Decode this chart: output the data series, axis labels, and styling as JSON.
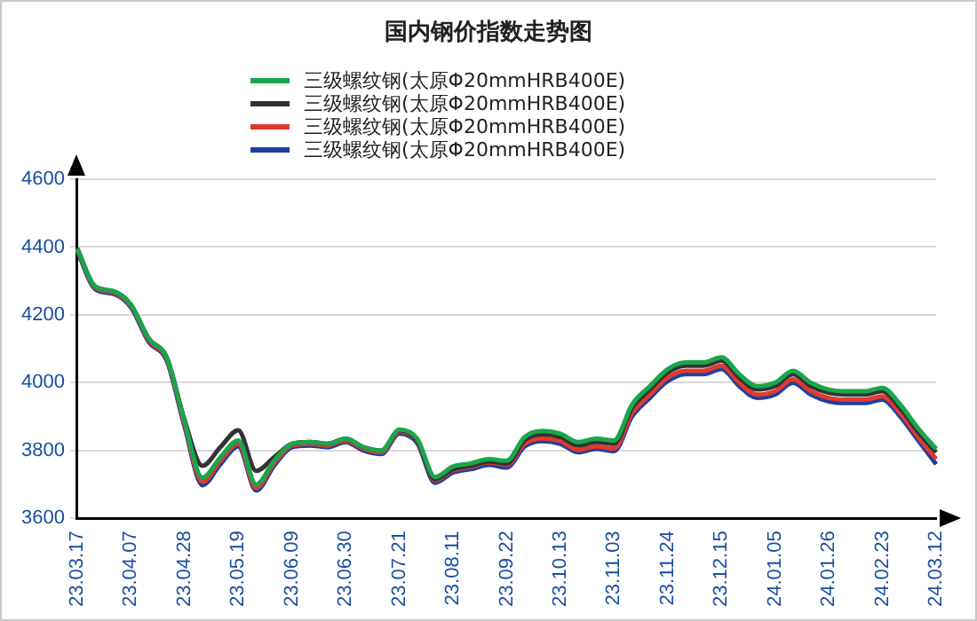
{
  "chart_data": {
    "type": "line",
    "title": "国内钢价指数走势图",
    "categories": [
      "23.03.17",
      null,
      null,
      "23.04.07",
      null,
      null,
      "23.04.28",
      null,
      null,
      "23.05.19",
      null,
      null,
      "23.06.09",
      null,
      null,
      "23.06.30",
      null,
      null,
      "23.07.21",
      null,
      null,
      "23.08.11",
      null,
      null,
      "23.09.22",
      null,
      null,
      "23.10.13",
      null,
      null,
      "23.11.03",
      null,
      null,
      "23.11.24",
      null,
      null,
      "23.12.15",
      null,
      null,
      "24.01.05",
      null,
      null,
      "24.01.26",
      null,
      null,
      "24.02.23",
      null,
      null,
      "24.03.12"
    ],
    "series": [
      {
        "name": "三级螺纹钢(太原Φ20mmHRB400E)",
        "color": "#1aa64b",
        "values": [
          4396,
          4284,
          4270,
          4230,
          4130,
          4075,
          3885,
          3720,
          3780,
          3830,
          3700,
          3770,
          3820,
          3825,
          3820,
          3835,
          3810,
          3800,
          3862,
          3835,
          3722,
          3753,
          3762,
          3775,
          3770,
          3840,
          3858,
          3850,
          3825,
          3835,
          3830,
          3935,
          3990,
          4040,
          4060,
          4060,
          4075,
          4025,
          3990,
          4000,
          4035,
          4000,
          3980,
          3975,
          3975,
          3985,
          3935,
          3865,
          3805
        ]
      },
      {
        "name": "三级螺纹钢(太原Φ20mmHRB400E)",
        "color": "#333333",
        "values": [
          4396,
          4284,
          4270,
          4230,
          4130,
          4075,
          3890,
          3755,
          3810,
          3860,
          3740,
          3780,
          3820,
          3825,
          3820,
          3835,
          3810,
          3800,
          3860,
          3830,
          3715,
          3745,
          3755,
          3768,
          3762,
          3830,
          3848,
          3840,
          3815,
          3825,
          3820,
          3925,
          3980,
          4030,
          4050,
          4050,
          4065,
          4015,
          3980,
          3990,
          4025,
          3990,
          3970,
          3965,
          3965,
          3975,
          3925,
          3855,
          3795
        ]
      },
      {
        "name": "三级螺纹钢(太原Φ20mmHRB400E)",
        "color": "#e0392e",
        "values": [
          4392,
          4280,
          4266,
          4226,
          4125,
          4070,
          3878,
          3708,
          3770,
          3820,
          3690,
          3762,
          3815,
          3820,
          3815,
          3830,
          3805,
          3795,
          3855,
          3828,
          3712,
          3742,
          3752,
          3765,
          3758,
          3820,
          3836,
          3828,
          3802,
          3812,
          3806,
          3910,
          3965,
          4015,
          4035,
          4035,
          4050,
          4000,
          3965,
          3975,
          4010,
          3975,
          3955,
          3950,
          3950,
          3960,
          3910,
          3840,
          3775
        ]
      },
      {
        "name": "三级螺纹钢(太原Φ20mmHRB400E)",
        "color": "#1f3f9e",
        "values": [
          4388,
          4276,
          4262,
          4222,
          4120,
          4065,
          3870,
          3698,
          3760,
          3812,
          3682,
          3755,
          3810,
          3815,
          3810,
          3825,
          3800,
          3790,
          3850,
          3822,
          3705,
          3735,
          3745,
          3758,
          3750,
          3812,
          3828,
          3820,
          3795,
          3805,
          3798,
          3900,
          3955,
          4005,
          4025,
          4025,
          4040,
          3990,
          3955,
          3965,
          4000,
          3965,
          3945,
          3940,
          3940,
          3950,
          3900,
          3830,
          3760
        ]
      }
    ],
    "ylim": [
      3600,
      4600
    ],
    "yticks": [
      3600,
      3800,
      4000,
      4200,
      4400,
      4600
    ],
    "grid": "y",
    "legend": "top",
    "marker": "none",
    "line_style": "solid"
  }
}
